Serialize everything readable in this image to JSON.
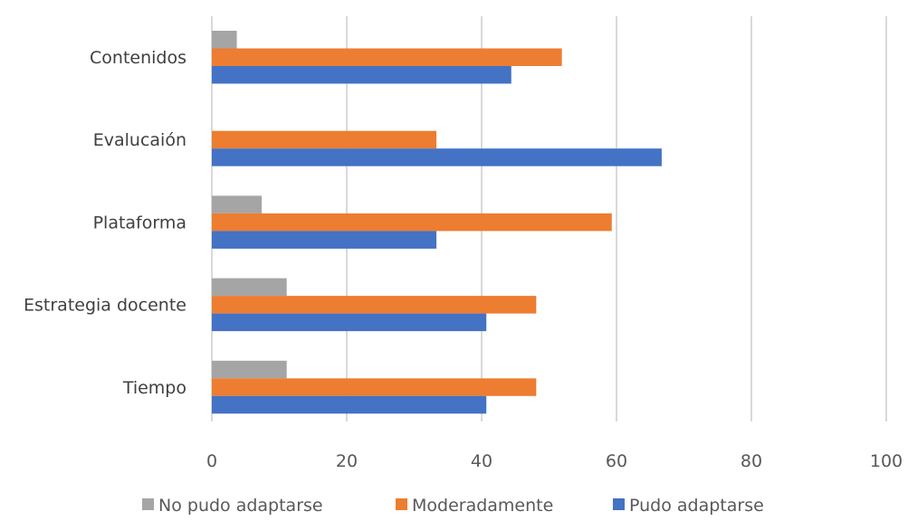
{
  "chart_data": {
    "type": "bar",
    "orientation": "horizontal",
    "categories": [
      "Contenidos",
      "Evalucaión",
      "Plataforma",
      "Estrategia docente",
      "Tiempo"
    ],
    "series": [
      {
        "name": "No pudo adaptarse",
        "color": "#a5a5a5",
        "values": [
          3.7,
          0,
          7.4,
          11.1,
          11.1
        ]
      },
      {
        "name": "Moderadamente",
        "color": "#ed7d31",
        "values": [
          51.9,
          33.3,
          59.3,
          48.1,
          48.1
        ]
      },
      {
        "name": "Pudo adaptarse",
        "color": "#4472c4",
        "values": [
          44.4,
          66.7,
          33.3,
          40.7,
          40.7
        ]
      }
    ],
    "xlim": [
      0,
      100
    ],
    "xticks": [
      0,
      20,
      40,
      60,
      80,
      100
    ],
    "grid": true,
    "legend_position": "bottom"
  }
}
